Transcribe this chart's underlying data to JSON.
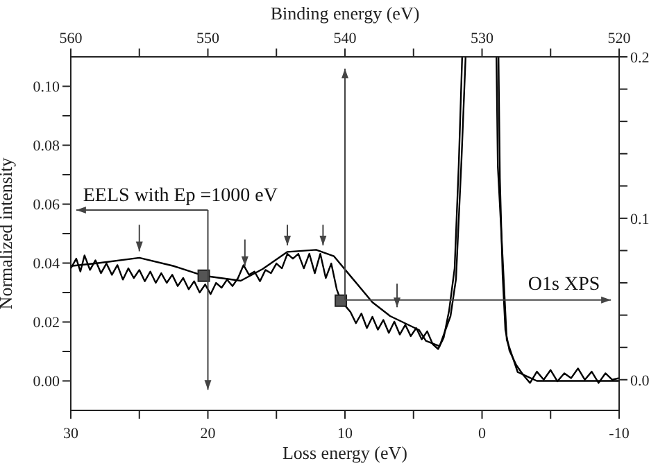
{
  "chart_data": {
    "type": "line",
    "xlabel": "Loss energy (eV)",
    "ylabel": "Normalized intensity",
    "x2label": "Binding energy (eV)",
    "line_style": "solid",
    "xlim": [
      30,
      -10
    ],
    "xticks": [
      30,
      {
        "value": 25,
        "label": null
      },
      20,
      {
        "value": 15,
        "label": null
      },
      10,
      {
        "value": 5,
        "label": null
      },
      0,
      {
        "value": -5,
        "label": null
      },
      -10
    ],
    "x2lim": [
      560,
      520
    ],
    "x2ticks": [
      560,
      {
        "value": 555,
        "label": null
      },
      550,
      {
        "value": 545,
        "label": null
      },
      540,
      {
        "value": 535,
        "label": null
      },
      530,
      {
        "value": 525,
        "label": null
      },
      520
    ],
    "ylim": [
      -0.01,
      0.11
    ],
    "yticks": [
      {
        "value": 0,
        "label": "0.00"
      },
      {
        "value": 0.01,
        "label": null
      },
      {
        "value": 0.02,
        "label": "0.02"
      },
      {
        "value": 0.03,
        "label": null
      },
      {
        "value": 0.04,
        "label": "0.04"
      },
      {
        "value": 0.05,
        "label": null
      },
      {
        "value": 0.06,
        "label": "0.06"
      },
      {
        "value": 0.07,
        "label": null
      },
      {
        "value": 0.08,
        "label": "0.08"
      },
      {
        "value": 0.09,
        "label": null
      },
      {
        "value": 0.1,
        "label": "0.10"
      }
    ],
    "y2lim": [
      -0.019,
      0.2
    ],
    "y2ticks": [
      {
        "value": 0,
        "label": "0.0"
      },
      {
        "value": 0.02,
        "label": null
      },
      {
        "value": 0.04,
        "label": null
      },
      {
        "value": 0.06,
        "label": null
      },
      {
        "value": 0.08,
        "label": null
      },
      {
        "value": 0.1,
        "label": "0.1"
      },
      {
        "value": 0.12,
        "label": null
      },
      {
        "value": 0.14,
        "label": null
      },
      {
        "value": 0.16,
        "label": null
      },
      {
        "value": 0.18,
        "label": null
      },
      {
        "value": 0.2,
        "label": "0.2"
      }
    ],
    "annotations": [
      "EELS with Ep =1000 eV",
      "O1s XPS"
    ],
    "series": [
      {
        "type": "line",
        "color": "#000000",
        "x": [
          30,
          28,
          25,
          22.5,
          20.3,
          17.6,
          16,
          14.2,
          12.1,
          10.8,
          9.4,
          8,
          6.7,
          4.6,
          4.1,
          3.1,
          2.3,
          1.9,
          1.5,
          1.2
        ],
        "values": [
          0.039,
          0.04,
          0.0418,
          0.039,
          0.0357,
          0.034,
          0.038,
          0.0438,
          0.0445,
          0.0423,
          0.0345,
          0.0267,
          0.022,
          0.0173,
          0.0136,
          0.0118,
          0.022,
          0.0346,
          0.075,
          0.11
        ]
      },
      {
        "type": "line",
        "color": "#000000",
        "x": [
          -1.05,
          -1.15,
          -1.5,
          -1.8,
          -2.6,
          -4,
          -10
        ],
        "values": [
          0.11,
          0.073,
          0.042,
          0.014,
          0.003,
          0,
          0
        ]
      },
      {
        "type": "line",
        "axis": "y2",
        "color": "#000000",
        "x": [
          30,
          29.6,
          29.3,
          29,
          28.6,
          28.2,
          27.8,
          27.4,
          27,
          26.6,
          26.2,
          25.8,
          25.4,
          25,
          24.6,
          24.2,
          23.8,
          23.4,
          23,
          22.6,
          22.2,
          21.8,
          21.4,
          21,
          20.6,
          20.2,
          19.8,
          19.4,
          19,
          18.6,
          18.2,
          17.8,
          17.4,
          17,
          16.6,
          16.2,
          15.8,
          15.4,
          15,
          14.6,
          14.2,
          13.8,
          13.4,
          13,
          12.6,
          12.2,
          11.8,
          11.4,
          11,
          10.6,
          10.3,
          10,
          9.6,
          9.2,
          8.8,
          8.4,
          8,
          7.6,
          7.2,
          6.8,
          6.4,
          6,
          5.6,
          5.2,
          4.8,
          4.4,
          4,
          3.6,
          3.2,
          2.8,
          2.4,
          2,
          1.7,
          1.45
        ],
        "values": [
          0.069,
          0.075,
          0.067,
          0.077,
          0.068,
          0.074,
          0.066,
          0.072,
          0.065,
          0.071,
          0.062,
          0.069,
          0.063,
          0.068,
          0.061,
          0.067,
          0.06,
          0.066,
          0.06,
          0.065,
          0.058,
          0.063,
          0.056,
          0.061,
          0.054,
          0.059,
          0.053,
          0.06,
          0.057,
          0.062,
          0.058,
          0.063,
          0.071,
          0.065,
          0.067,
          0.061,
          0.068,
          0.066,
          0.072,
          0.069,
          0.078,
          0.075,
          0.078,
          0.069,
          0.078,
          0.066,
          0.078,
          0.063,
          0.072,
          0.056,
          0.049,
          0.046,
          0.042,
          0.035,
          0.041,
          0.032,
          0.039,
          0.031,
          0.037,
          0.029,
          0.036,
          0.028,
          0.034,
          0.027,
          0.032,
          0.025,
          0.03,
          0.022,
          0.019,
          0.026,
          0.043,
          0.069,
          0.133,
          0.2
        ]
      },
      {
        "type": "line",
        "axis": "y2",
        "color": "#000000",
        "x": [
          -1.2,
          -1.3,
          -1.5,
          -1.7,
          -2,
          -2.5,
          -3,
          -3.5,
          -4,
          -4.5,
          -5,
          -5.5,
          -6,
          -6.5,
          -7,
          -7.5,
          -8,
          -8.5,
          -9,
          -9.5,
          -10
        ],
        "values": [
          0.2,
          0.125,
          0.065,
          0.031,
          0.018,
          0.009,
          0.003,
          -0.002,
          0.005,
          0,
          0.006,
          -0.001,
          0.004,
          0.001,
          0.007,
          0,
          0.005,
          -0.002,
          0.004,
          0,
          0.001
        ]
      },
      {
        "type": "scatter",
        "marker": "square",
        "color": "#555555",
        "x": [
          20.3
        ],
        "values": [
          0.0357
        ]
      },
      {
        "type": "scatter",
        "marker": "square",
        "axis": "y2",
        "color": "#555555",
        "x": [
          10.3
        ],
        "values": [
          0.049
        ]
      }
    ]
  }
}
